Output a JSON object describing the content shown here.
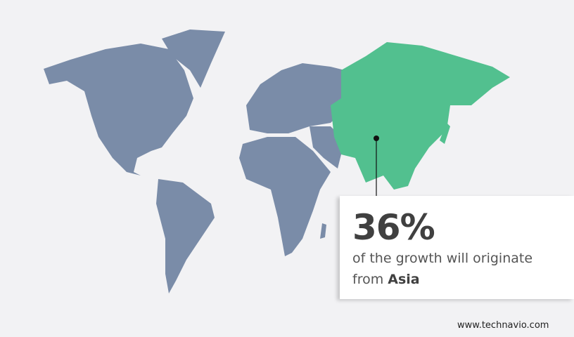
{
  "colors": {
    "background": "#f2f2f4",
    "other_regions": "#7a8ca8",
    "highlight_region": "#52c08f",
    "text": "#404040"
  },
  "map": {
    "highlighted_region": "Asia"
  },
  "callout": {
    "value": "36%",
    "text": "of the growth will originate",
    "prefix": "from",
    "region": "Asia"
  },
  "footer": {
    "website": "www.technavio.com"
  }
}
